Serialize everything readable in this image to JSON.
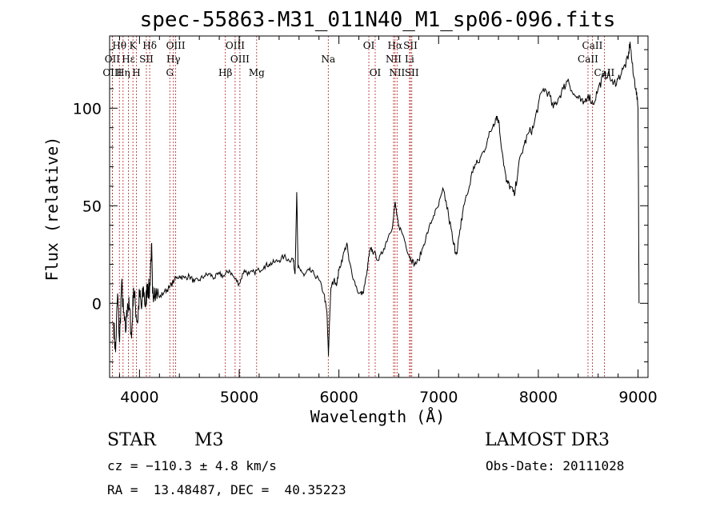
{
  "chart_data": {
    "type": "line",
    "title": "spec-55863-M31_011N40_M1_sp06-096.fits",
    "xlabel": "Wavelength (Å)",
    "ylabel": "Flux (relative)",
    "xlim": [
      3700,
      9100
    ],
    "ylim": [
      -38,
      137
    ],
    "xticks": [
      4000,
      5000,
      6000,
      7000,
      8000,
      9000
    ],
    "yticks": [
      0,
      50,
      100
    ],
    "spectrum": [
      [
        3740,
        -10
      ],
      [
        3760,
        -25
      ],
      [
        3780,
        5
      ],
      [
        3800,
        -20
      ],
      [
        3820,
        10
      ],
      [
        3840,
        -5
      ],
      [
        3860,
        -15
      ],
      [
        3880,
        0
      ],
      [
        3900,
        -3
      ],
      [
        3920,
        -18
      ],
      [
        3940,
        8
      ],
      [
        3960,
        -2
      ],
      [
        3980,
        -10
      ],
      [
        4000,
        5
      ],
      [
        4020,
        -3
      ],
      [
        4040,
        8
      ],
      [
        4060,
        -2
      ],
      [
        4080,
        10
      ],
      [
        4100,
        5
      ],
      [
        4120,
        30
      ],
      [
        4130,
        5
      ],
      [
        4150,
        8
      ],
      [
        4200,
        3
      ],
      [
        4250,
        6
      ],
      [
        4300,
        8
      ],
      [
        4350,
        12
      ],
      [
        4400,
        14
      ],
      [
        4450,
        13
      ],
      [
        4500,
        14
      ],
      [
        4550,
        11
      ],
      [
        4600,
        12
      ],
      [
        4650,
        14
      ],
      [
        4700,
        15
      ],
      [
        4750,
        13
      ],
      [
        4800,
        15
      ],
      [
        4850,
        14
      ],
      [
        4900,
        17
      ],
      [
        4950,
        13
      ],
      [
        5000,
        10
      ],
      [
        5050,
        17
      ],
      [
        5100,
        15
      ],
      [
        5150,
        16
      ],
      [
        5200,
        17
      ],
      [
        5250,
        19
      ],
      [
        5300,
        20
      ],
      [
        5350,
        21
      ],
      [
        5400,
        22
      ],
      [
        5450,
        24
      ],
      [
        5500,
        22
      ],
      [
        5540,
        23
      ],
      [
        5560,
        15
      ],
      [
        5577,
        57
      ],
      [
        5590,
        18
      ],
      [
        5620,
        17
      ],
      [
        5650,
        14
      ],
      [
        5700,
        17
      ],
      [
        5750,
        15
      ],
      [
        5800,
        12
      ],
      [
        5850,
        5
      ],
      [
        5880,
        -5
      ],
      [
        5895,
        -27
      ],
      [
        5905,
        -10
      ],
      [
        5920,
        8
      ],
      [
        5950,
        12
      ],
      [
        5980,
        10
      ],
      [
        6000,
        17
      ],
      [
        6040,
        24
      ],
      [
        6080,
        31
      ],
      [
        6100,
        22
      ],
      [
        6150,
        12
      ],
      [
        6200,
        5
      ],
      [
        6240,
        5
      ],
      [
        6280,
        15
      ],
      [
        6300,
        24
      ],
      [
        6320,
        28
      ],
      [
        6350,
        26
      ],
      [
        6400,
        22
      ],
      [
        6450,
        28
      ],
      [
        6500,
        35
      ],
      [
        6540,
        40
      ],
      [
        6563,
        52
      ],
      [
        6580,
        45
      ],
      [
        6600,
        40
      ],
      [
        6650,
        34
      ],
      [
        6700,
        25
      ],
      [
        6720,
        23
      ],
      [
        6760,
        20
      ],
      [
        6800,
        22
      ],
      [
        6850,
        30
      ],
      [
        6900,
        38
      ],
      [
        6950,
        45
      ],
      [
        7000,
        50
      ],
      [
        7050,
        58
      ],
      [
        7100,
        45
      ],
      [
        7150,
        30
      ],
      [
        7180,
        26
      ],
      [
        7220,
        38
      ],
      [
        7250,
        50
      ],
      [
        7300,
        58
      ],
      [
        7350,
        70
      ],
      [
        7400,
        72
      ],
      [
        7450,
        78
      ],
      [
        7500,
        85
      ],
      [
        7550,
        92
      ],
      [
        7580,
        96
      ],
      [
        7600,
        94
      ],
      [
        7640,
        77
      ],
      [
        7680,
        62
      ],
      [
        7720,
        60
      ],
      [
        7760,
        55
      ],
      [
        7800,
        70
      ],
      [
        7850,
        80
      ],
      [
        7900,
        87
      ],
      [
        7950,
        90
      ],
      [
        8000,
        102
      ],
      [
        8050,
        110
      ],
      [
        8100,
        108
      ],
      [
        8150,
        100
      ],
      [
        8200,
        105
      ],
      [
        8250,
        110
      ],
      [
        8300,
        115
      ],
      [
        8350,
        107
      ],
      [
        8400,
        105
      ],
      [
        8450,
        102
      ],
      [
        8500,
        107
      ],
      [
        8550,
        102
      ],
      [
        8600,
        110
      ],
      [
        8650,
        116
      ],
      [
        8700,
        118
      ],
      [
        8750,
        112
      ],
      [
        8800,
        115
      ],
      [
        8850,
        120
      ],
      [
        8900,
        125
      ],
      [
        8920,
        134
      ],
      [
        8950,
        118
      ],
      [
        8980,
        110
      ],
      [
        9000,
        100
      ],
      [
        9010,
        0
      ]
    ],
    "emission_lines": [
      {
        "name": "Hθ",
        "wave": 3798,
        "row": 1
      },
      {
        "name": "OII",
        "wave": 3727,
        "row": 2
      },
      {
        "name": "OIII",
        "wave": 3727,
        "row": 3
      },
      {
        "name": "K",
        "wave": 3934,
        "row": 1
      },
      {
        "name": "Hε",
        "wave": 3889,
        "row": 2
      },
      {
        "name": "Hη",
        "wave": 3835,
        "row": 3
      },
      {
        "name": "H",
        "wave": 3969,
        "row": 3
      },
      {
        "name": "SII",
        "wave": 4069,
        "row": 2
      },
      {
        "name": "Hδ",
        "wave": 4102,
        "row": 1
      },
      {
        "name": "OIII",
        "wave": 4363,
        "row": 1
      },
      {
        "name": "Hγ",
        "wave": 4340,
        "row": 2
      },
      {
        "name": "G",
        "wave": 4304,
        "row": 3
      },
      {
        "name": "OIII",
        "wave": 4959,
        "row": 1
      },
      {
        "name": "OIII",
        "wave": 5007,
        "row": 2
      },
      {
        "name": "Hβ",
        "wave": 4861,
        "row": 3
      },
      {
        "name": "Mg",
        "wave": 5175,
        "row": 3
      },
      {
        "name": "Na",
        "wave": 5893,
        "row": 2
      },
      {
        "name": "OI",
        "wave": 6300,
        "row": 1
      },
      {
        "name": "OI",
        "wave": 6364,
        "row": 3
      },
      {
        "name": "Hα",
        "wave": 6563,
        "row": 1
      },
      {
        "name": "NII",
        "wave": 6548,
        "row": 2
      },
      {
        "name": "NII",
        "wave": 6583,
        "row": 3
      },
      {
        "name": "SII",
        "wave": 6717,
        "row": 1
      },
      {
        "name": "Li",
        "wave": 6708,
        "row": 2
      },
      {
        "name": "SII",
        "wave": 6731,
        "row": 3
      },
      {
        "name": "CaII",
        "wave": 8542,
        "row": 1
      },
      {
        "name": "CaII",
        "wave": 8498,
        "row": 2
      },
      {
        "name": "CaII",
        "wave": 8662,
        "row": 3
      }
    ]
  },
  "info": {
    "class": "STAR",
    "subclass": "M3",
    "survey": "LAMOST DR3",
    "cz": "cz = −110.3 ± 4.8 km/s",
    "obs_date": "Obs-Date: 20111028",
    "radec": "RA =  13.48487, DEC =  40.35223"
  }
}
